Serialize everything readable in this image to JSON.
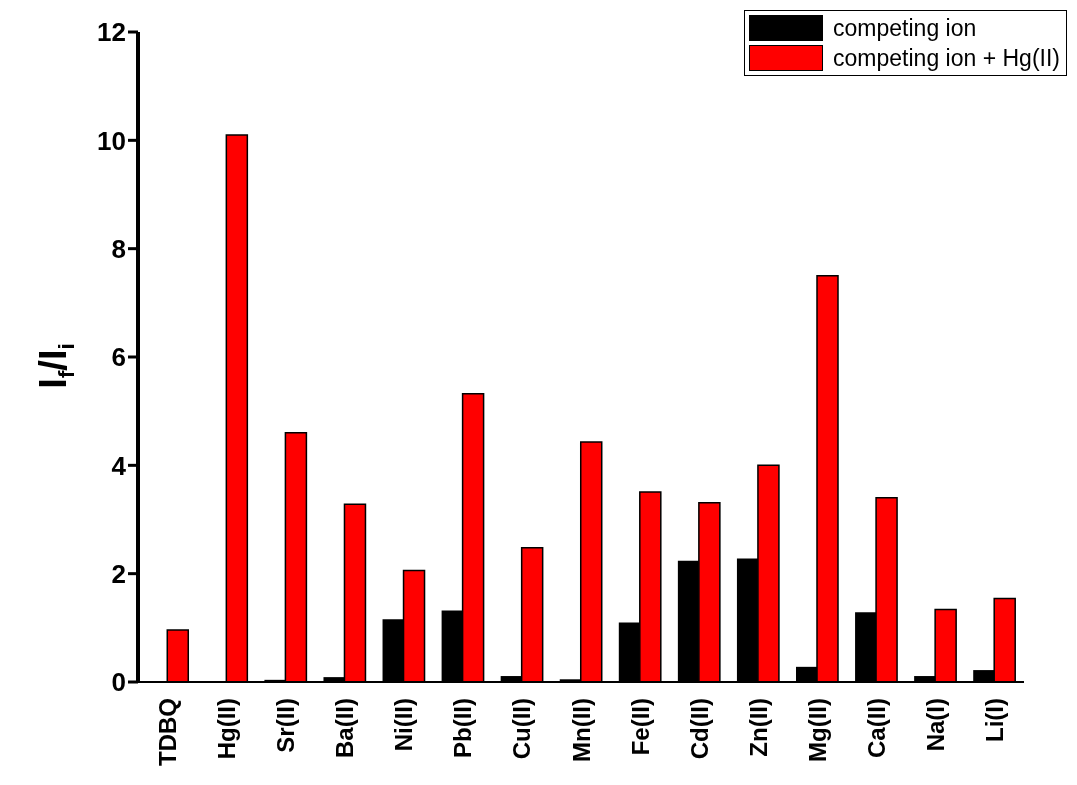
{
  "chart_data": {
    "type": "bar",
    "ylabel": "I$_{f}$/I$_{i}$",
    "categories": [
      "TDBQ",
      "Hg(II)",
      "Sr(II)",
      "Ba(II)",
      "Ni(II)",
      "Pb(II)",
      "Cu(II)",
      "Mn(II)",
      "Fe(II)",
      "Cd(II)",
      "Zn(II)",
      "Mg(II)",
      "Ca(II)",
      "Na(I)",
      "Li(I)"
    ],
    "series": [
      {
        "name": "competing ion",
        "color": "#000000",
        "values": [
          0,
          0,
          0.04,
          0.09,
          1.16,
          1.32,
          0.11,
          0.05,
          1.1,
          2.24,
          2.28,
          0.28,
          1.29,
          0.11,
          0.22
        ]
      },
      {
        "name": "competing ion + Hg(II)",
        "color": "#ff0000",
        "values": [
          0.96,
          10.1,
          4.6,
          3.28,
          2.06,
          5.32,
          2.48,
          4.43,
          3.51,
          3.31,
          4.0,
          7.5,
          3.4,
          1.34,
          1.54
        ]
      }
    ],
    "ylim": [
      0,
      12
    ],
    "yticks": [
      0,
      2,
      4,
      6,
      8,
      10,
      12
    ],
    "legend": "top right"
  }
}
